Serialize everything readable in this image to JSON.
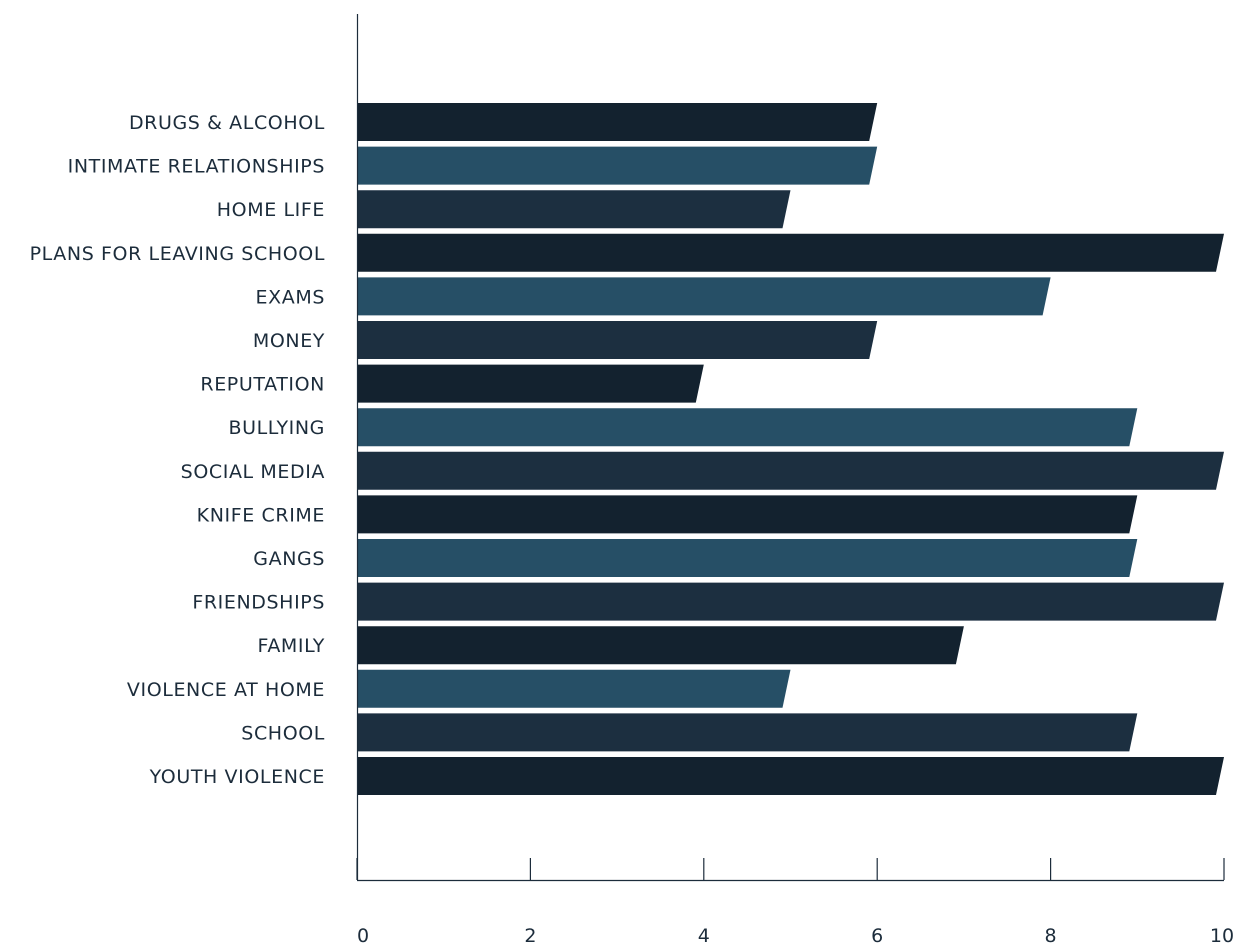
{
  "chart_data": {
    "type": "bar",
    "orientation": "horizontal",
    "categories": [
      "DRUGS & ALCOHOL",
      "INTIMATE RELATIONSHIPS",
      "HOME LIFE",
      "PLANS FOR LEAVING SCHOOL",
      "EXAMS",
      "MONEY",
      "REPUTATION",
      "BULLYING",
      "SOCIAL MEDIA",
      "KNIFE CRIME",
      "GANGS",
      "FRIENDSHIPS",
      "FAMILY",
      "VIOLENCE AT HOME",
      "SCHOOL",
      "YOUTH VIOLENCE"
    ],
    "values": [
      6,
      6,
      5,
      10,
      8,
      6,
      4,
      9,
      10,
      9,
      9,
      10,
      7,
      5,
      9,
      10
    ],
    "xlim": [
      0,
      10
    ],
    "xticks": [
      "0",
      "2",
      "4",
      "6",
      "8",
      "10"
    ],
    "title": "",
    "xlabel": "",
    "ylabel": "",
    "grid": false,
    "colors": {
      "palette": [
        "#13222f",
        "#264f66",
        "#1c2f40"
      ],
      "axis": "#1c2c3b",
      "text": "#1c2c3b",
      "background": "#ffffff"
    }
  }
}
